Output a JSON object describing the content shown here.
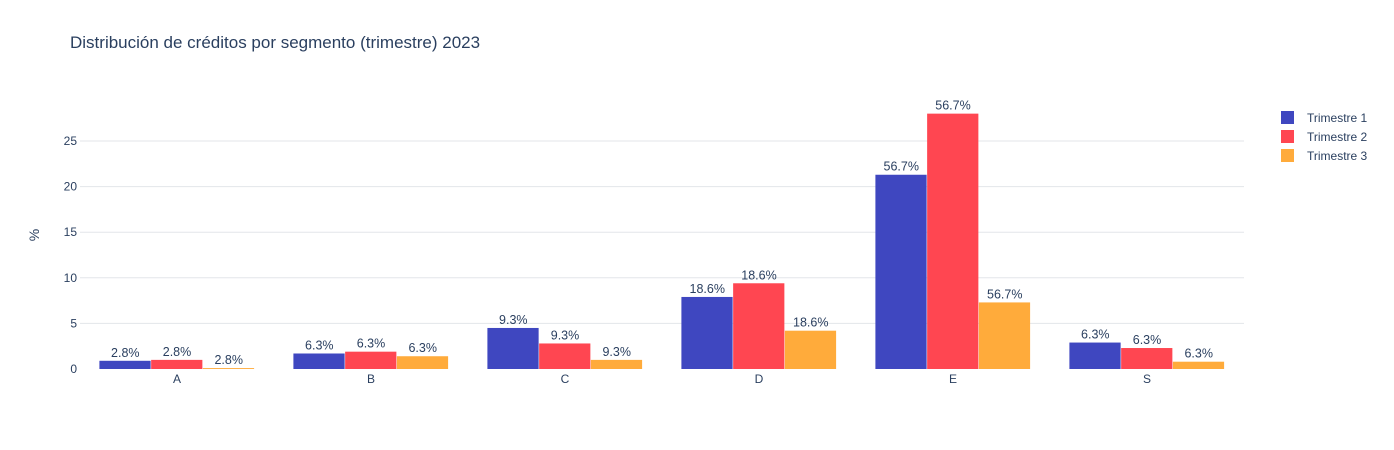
{
  "chart_data": {
    "type": "bar",
    "title": "Distribución de créditos por segmento (trimestre) 2023",
    "xlabel": "",
    "ylabel": "%",
    "categories": [
      "A",
      "B",
      "C",
      "D",
      "E",
      "S"
    ],
    "ylim": [
      0,
      28.5
    ],
    "yticks": [
      0,
      5,
      10,
      15,
      20,
      25
    ],
    "grid": true,
    "legend": "right",
    "series": [
      {
        "name": "Trimestre 1",
        "color": "#3f47c0",
        "values": [
          0.9,
          1.7,
          4.5,
          7.9,
          21.3,
          2.9
        ],
        "labels": [
          "2.8%",
          "6.3%",
          "9.3%",
          "18.6%",
          "56.7%",
          "6.3%"
        ]
      },
      {
        "name": "Trimestre 2",
        "color": "#ff4651",
        "values": [
          1.0,
          1.9,
          2.8,
          9.4,
          28.0,
          2.3
        ],
        "labels": [
          "2.8%",
          "6.3%",
          "9.3%",
          "18.6%",
          "56.7%",
          "6.3%"
        ]
      },
      {
        "name": "Trimestre 3",
        "color": "#ffab3b",
        "values": [
          0.1,
          1.4,
          1.0,
          4.2,
          7.3,
          0.8
        ],
        "labels": [
          "2.8%",
          "6.3%",
          "9.3%",
          "18.6%",
          "56.7%",
          "6.3%"
        ]
      }
    ]
  }
}
